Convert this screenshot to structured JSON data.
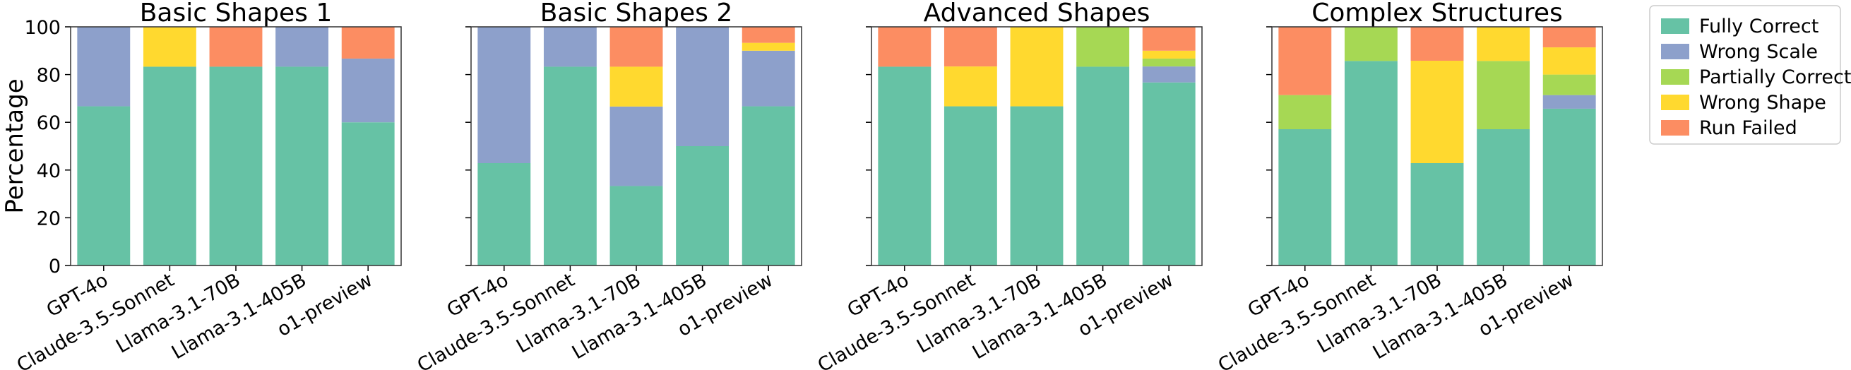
{
  "colors": {
    "Fully Correct": "#66c2a5",
    "Wrong Scale": "#8da0cb",
    "Partially Correct": "#a6d854",
    "Wrong Shape": "#ffd92f",
    "Run Failed": "#fc8d62"
  },
  "legend": {
    "placement": "outside-right",
    "entries": [
      "Fully Correct",
      "Wrong Scale",
      "Partially Correct",
      "Wrong Shape",
      "Run Failed"
    ]
  },
  "chart_data": [
    {
      "type": "bar",
      "stacked": true,
      "title": "Basic Shapes 1",
      "ylabel": "Percentage",
      "ylim": [
        0,
        100
      ],
      "yticks": [
        0,
        20,
        40,
        60,
        80,
        100
      ],
      "categories": [
        "GPT-4o",
        "Claude-3.5-Sonnet",
        "Llama-3.1-70B",
        "Llama-3.1-405B",
        "o1-preview"
      ],
      "series": [
        {
          "name": "Fully Correct",
          "values": [
            66.7,
            83.3,
            83.3,
            83.3,
            60.0
          ]
        },
        {
          "name": "Wrong Scale",
          "values": [
            33.3,
            0,
            0,
            16.7,
            26.7
          ]
        },
        {
          "name": "Partially Correct",
          "values": [
            0,
            0,
            0,
            0,
            0
          ]
        },
        {
          "name": "Wrong Shape",
          "values": [
            0,
            16.7,
            0,
            0,
            0
          ]
        },
        {
          "name": "Run Failed",
          "values": [
            0,
            0,
            16.7,
            0,
            13.3
          ]
        }
      ]
    },
    {
      "type": "bar",
      "stacked": true,
      "title": "Basic Shapes 2",
      "ylabel": "",
      "ylim": [
        0,
        100
      ],
      "yticks": [
        0,
        20,
        40,
        60,
        80,
        100
      ],
      "categories": [
        "GPT-4o",
        "Claude-3.5-Sonnet",
        "Llama-3.1-70B",
        "Llama-3.1-405B",
        "o1-preview"
      ],
      "series": [
        {
          "name": "Fully Correct",
          "values": [
            42.9,
            83.3,
            33.3,
            50.0,
            66.7
          ]
        },
        {
          "name": "Wrong Scale",
          "values": [
            57.1,
            16.7,
            33.3,
            50.0,
            23.3
          ]
        },
        {
          "name": "Partially Correct",
          "values": [
            0,
            0,
            0,
            0,
            0
          ]
        },
        {
          "name": "Wrong Shape",
          "values": [
            0,
            0,
            16.7,
            0,
            3.3
          ]
        },
        {
          "name": "Run Failed",
          "values": [
            0,
            0,
            16.7,
            0,
            6.7
          ]
        }
      ]
    },
    {
      "type": "bar",
      "stacked": true,
      "title": "Advanced Shapes",
      "ylabel": "",
      "ylim": [
        0,
        100
      ],
      "yticks": [
        0,
        20,
        40,
        60,
        80,
        100
      ],
      "categories": [
        "GPT-4o",
        "Claude-3.5-Sonnet",
        "Llama-3.1-70B",
        "Llama-3.1-405B",
        "o1-preview"
      ],
      "series": [
        {
          "name": "Fully Correct",
          "values": [
            83.3,
            66.7,
            66.7,
            83.3,
            76.7
          ]
        },
        {
          "name": "Wrong Scale",
          "values": [
            0,
            0,
            0,
            0,
            6.7
          ]
        },
        {
          "name": "Partially Correct",
          "values": [
            0,
            0,
            0,
            16.7,
            3.3
          ]
        },
        {
          "name": "Wrong Shape",
          "values": [
            0,
            16.7,
            33.3,
            0,
            3.3
          ]
        },
        {
          "name": "Run Failed",
          "values": [
            16.7,
            16.7,
            0,
            0,
            10.0
          ]
        }
      ]
    },
    {
      "type": "bar",
      "stacked": true,
      "title": "Complex Structures",
      "ylabel": "",
      "ylim": [
        0,
        100
      ],
      "yticks": [
        0,
        20,
        40,
        60,
        80,
        100
      ],
      "categories": [
        "GPT-4o",
        "Claude-3.5-Sonnet",
        "Llama-3.1-70B",
        "Llama-3.1-405B",
        "o1-preview"
      ],
      "series": [
        {
          "name": "Fully Correct",
          "values": [
            57.1,
            85.7,
            42.9,
            57.1,
            65.7
          ]
        },
        {
          "name": "Wrong Scale",
          "values": [
            0,
            0,
            0,
            0,
            5.7
          ]
        },
        {
          "name": "Partially Correct",
          "values": [
            14.3,
            14.3,
            0,
            28.6,
            8.6
          ]
        },
        {
          "name": "Wrong Shape",
          "values": [
            0,
            0,
            42.9,
            14.3,
            11.4
          ]
        },
        {
          "name": "Run Failed",
          "values": [
            28.6,
            0,
            14.2,
            0,
            8.6
          ]
        }
      ]
    }
  ]
}
